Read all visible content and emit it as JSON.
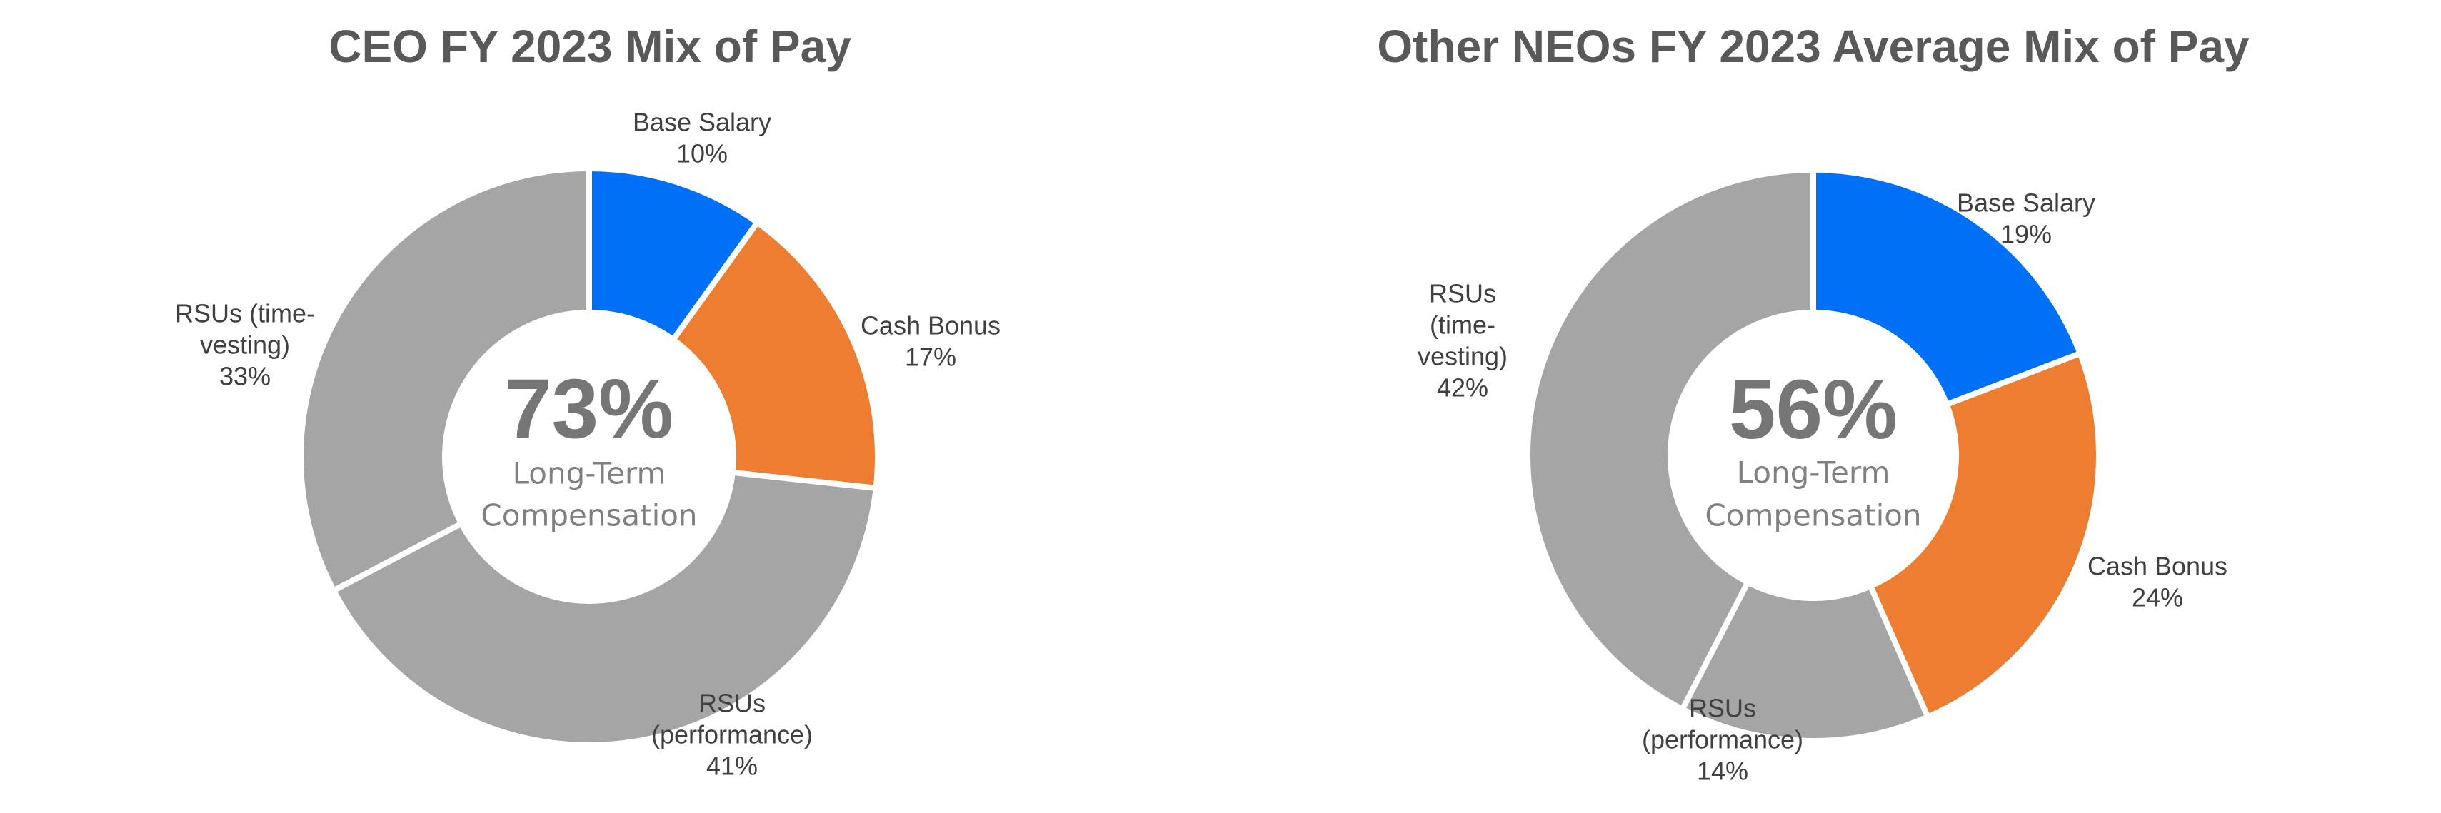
{
  "chart_data": [
    {
      "type": "pie",
      "variant": "donut",
      "title": "CEO FY 2023 Mix of Pay",
      "center_value": "73%",
      "center_label": [
        "Long-Term",
        "Compensation"
      ],
      "slices": [
        {
          "name": "Base Salary",
          "label_lines": [
            "Base Salary"
          ],
          "value": 10,
          "display": "10%",
          "color": "#0070F6"
        },
        {
          "name": "Cash Bonus",
          "label_lines": [
            "Cash Bonus"
          ],
          "value": 17,
          "display": "17%",
          "color": "#ED7D31"
        },
        {
          "name": "RSUs (performance)",
          "label_lines": [
            "RSUs",
            "(performance)"
          ],
          "value": 41,
          "display": "41%",
          "color": "#A5A5A5"
        },
        {
          "name": "RSUs (time-vesting)",
          "label_lines": [
            "RSUs (time-",
            "vesting)"
          ],
          "value": 33,
          "display": "33%",
          "color": "#A5A5A5"
        }
      ]
    },
    {
      "type": "pie",
      "variant": "donut",
      "title": "Other NEOs FY 2023 Average Mix of Pay",
      "center_value": "56%",
      "center_label": [
        "Long-Term",
        "Compensation"
      ],
      "slices": [
        {
          "name": "Base Salary",
          "label_lines": [
            "Base Salary"
          ],
          "value": 19,
          "display": "19%",
          "color": "#0070F6"
        },
        {
          "name": "Cash Bonus",
          "label_lines": [
            "Cash Bonus"
          ],
          "value": 24,
          "display": "24%",
          "color": "#ED7D31"
        },
        {
          "name": "RSUs (performance)",
          "label_lines": [
            "RSUs",
            "(performance)"
          ],
          "value": 14,
          "display": "14%",
          "color": "#A5A5A5"
        },
        {
          "name": "RSUs (time-vesting)",
          "label_lines": [
            "RSUs",
            "(time-",
            "vesting)"
          ],
          "value": 42,
          "display": "42%",
          "color": "#A5A5A5"
        }
      ]
    }
  ]
}
